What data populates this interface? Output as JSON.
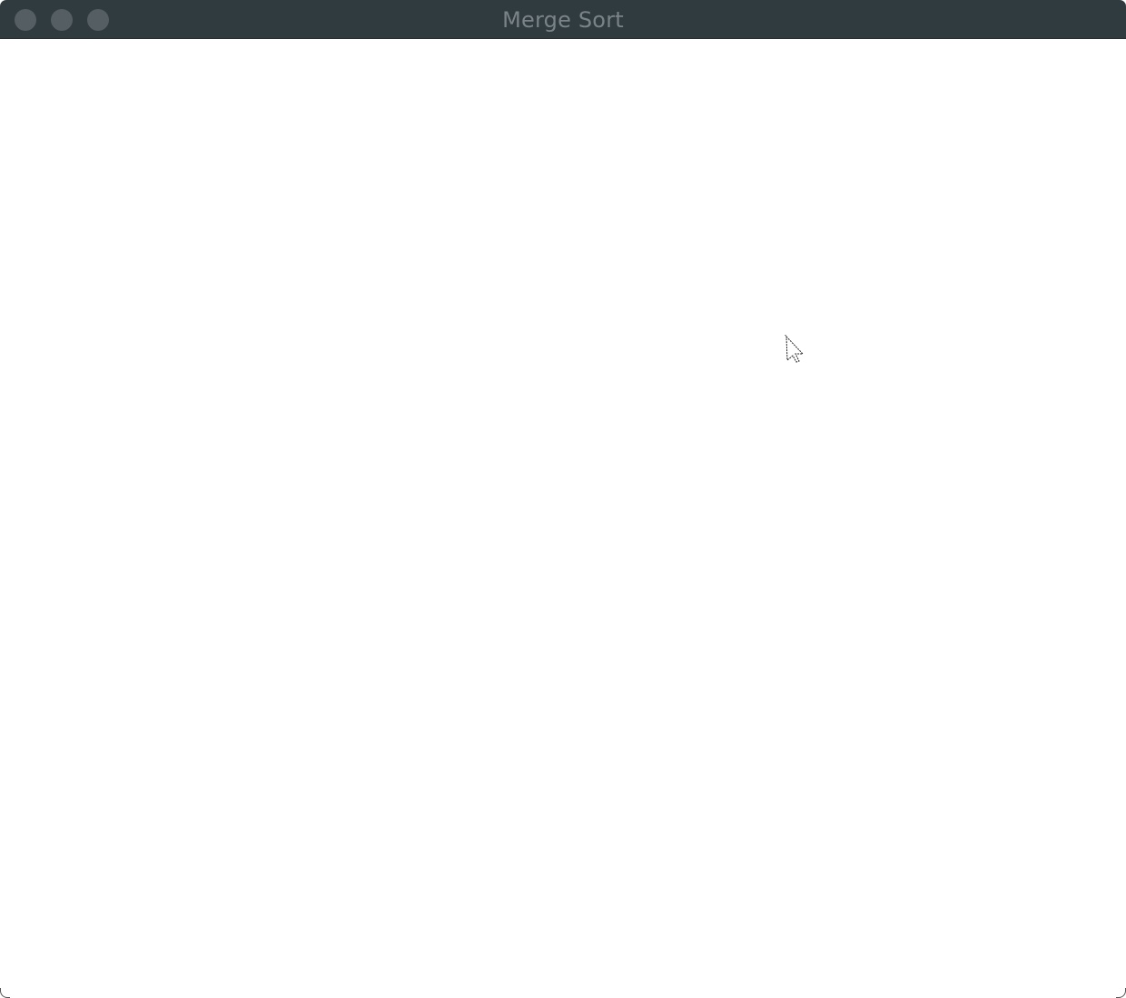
{
  "window": {
    "title": "Merge Sort",
    "titlebar_color": "#303b40",
    "background_color": "#ffffff",
    "traffic_light_color": "#555e62"
  },
  "icons": {
    "close": "close-button-icon",
    "minimize": "minimize-button-icon",
    "zoom": "zoom-button-icon",
    "cursor": "mouse-pointer-icon"
  }
}
